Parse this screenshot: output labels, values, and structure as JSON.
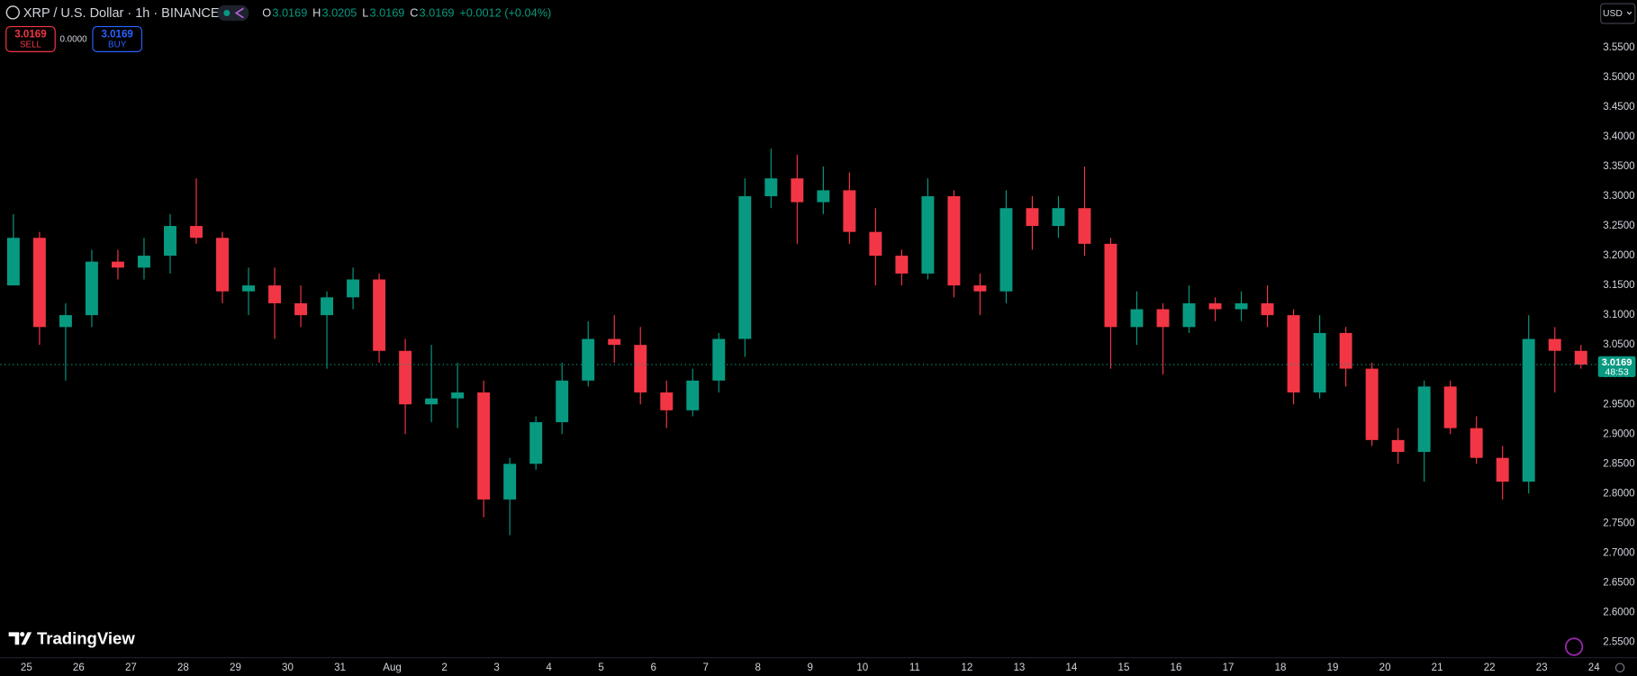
{
  "header": {
    "symbol": "XRP / U.S. Dollar · 1h · BINANCE",
    "ohlc": [
      {
        "key": "O",
        "value": "3.0169"
      },
      {
        "key": "H",
        "value": "3.0205"
      },
      {
        "key": "L",
        "value": "3.0169"
      },
      {
        "key": "C",
        "value": "3.0169"
      }
    ],
    "change": "+0.0012 (+0.04%)"
  },
  "trade": {
    "sell_price": "3.0169",
    "sell": "SELL",
    "spread": "0.0000",
    "buy_price": "3.0169",
    "buy": "BUY"
  },
  "currency": "USD",
  "brand": "TradingView",
  "countdown": "48:53",
  "chart_data": {
    "type": "candlestick",
    "up_color": "#089981",
    "down_color": "#f23645",
    "grid": false,
    "x_labels": [
      "25",
      "26",
      "27",
      "28",
      "29",
      "30",
      "31",
      "Aug",
      "2",
      "3",
      "4",
      "5",
      "6",
      "7",
      "8",
      "9",
      "10",
      "11",
      "12",
      "13",
      "14",
      "15",
      "16",
      "17",
      "18",
      "19",
      "20",
      "21",
      "22",
      "23",
      "24"
    ],
    "open": [
      3.15,
      3.23,
      3.08,
      3.1,
      3.19,
      3.18,
      3.2,
      3.25,
      3.23,
      3.14,
      3.15,
      3.12,
      3.1,
      3.13,
      3.16,
      3.04,
      2.95,
      2.96,
      2.97,
      2.79,
      2.85,
      2.92,
      2.99,
      3.06,
      3.05,
      2.97,
      2.94,
      2.99,
      3.06,
      3.3,
      3.33,
      3.29,
      3.31,
      3.24,
      3.2,
      3.17,
      3.3,
      3.15,
      3.14,
      3.28,
      3.25,
      3.28,
      3.22,
      3.08,
      3.11,
      3.08,
      3.12,
      3.11,
      3.12,
      3.1,
      2.97,
      3.07,
      3.01,
      2.89,
      2.87,
      2.98,
      2.91,
      2.86,
      2.82,
      3.06,
      3.04
    ],
    "high": [
      3.27,
      3.24,
      3.12,
      3.21,
      3.21,
      3.23,
      3.27,
      3.33,
      3.24,
      3.18,
      3.18,
      3.15,
      3.14,
      3.18,
      3.17,
      3.06,
      3.05,
      3.02,
      2.99,
      2.86,
      2.93,
      3.02,
      3.09,
      3.1,
      3.08,
      2.99,
      3.01,
      3.07,
      3.33,
      3.38,
      3.37,
      3.35,
      3.34,
      3.28,
      3.21,
      3.33,
      3.31,
      3.17,
      3.31,
      3.3,
      3.3,
      3.35,
      3.23,
      3.14,
      3.12,
      3.15,
      3.13,
      3.14,
      3.15,
      3.11,
      3.1,
      3.08,
      3.02,
      2.91,
      2.99,
      2.99,
      2.93,
      2.88,
      3.1,
      3.08,
      3.05
    ],
    "low": [
      3.15,
      3.05,
      2.99,
      3.08,
      3.16,
      3.16,
      3.17,
      3.22,
      3.12,
      3.1,
      3.06,
      3.08,
      3.01,
      3.11,
      3.02,
      2.9,
      2.92,
      2.91,
      2.76,
      2.73,
      2.84,
      2.9,
      2.98,
      3.02,
      2.95,
      2.91,
      2.93,
      2.97,
      3.03,
      3.28,
      3.22,
      3.27,
      3.22,
      3.15,
      3.15,
      3.16,
      3.13,
      3.1,
      3.12,
      3.21,
      3.23,
      3.2,
      3.01,
      3.05,
      3.0,
      3.07,
      3.09,
      3.09,
      3.08,
      2.95,
      2.96,
      2.98,
      2.88,
      2.85,
      2.82,
      2.9,
      2.85,
      2.79,
      2.8,
      2.97,
      3.01
    ],
    "close": [
      3.23,
      3.08,
      3.1,
      3.19,
      3.18,
      3.2,
      3.25,
      3.23,
      3.14,
      3.15,
      3.12,
      3.1,
      3.13,
      3.16,
      3.04,
      2.95,
      2.96,
      2.97,
      2.79,
      2.85,
      2.92,
      2.99,
      3.06,
      3.05,
      2.97,
      2.94,
      2.99,
      3.06,
      3.3,
      3.33,
      3.29,
      3.31,
      3.24,
      3.2,
      3.17,
      3.3,
      3.15,
      3.14,
      3.28,
      3.25,
      3.28,
      3.22,
      3.08,
      3.11,
      3.08,
      3.12,
      3.11,
      3.12,
      3.1,
      2.97,
      3.07,
      3.01,
      2.89,
      2.87,
      2.98,
      2.91,
      2.86,
      2.82,
      3.06,
      3.04,
      3.0169
    ],
    "last_price": 3.0169,
    "ylim": [
      2.52,
      3.63
    ],
    "yticks": [
      {
        "value": 2.55,
        "label": "2.5500"
      },
      {
        "value": 2.6,
        "label": "2.6000"
      },
      {
        "value": 2.65,
        "label": "2.6500"
      },
      {
        "value": 2.7,
        "label": "2.7000"
      },
      {
        "value": 2.75,
        "label": "2.7500"
      },
      {
        "value": 2.8,
        "label": "2.8000"
      },
      {
        "value": 2.85,
        "label": "2.8500"
      },
      {
        "value": 2.9,
        "label": "2.9000"
      },
      {
        "value": 2.95,
        "label": "2.9500"
      },
      {
        "value": 3.0,
        "label": "3.0000"
      },
      {
        "value": 3.05,
        "label": "3.0500"
      },
      {
        "value": 3.1,
        "label": "3.1000"
      },
      {
        "value": 3.15,
        "label": "3.1500"
      },
      {
        "value": 3.2,
        "label": "3.2000"
      },
      {
        "value": 3.25,
        "label": "3.2500"
      },
      {
        "value": 3.3,
        "label": "3.3000"
      },
      {
        "value": 3.35,
        "label": "3.3500"
      },
      {
        "value": 3.4,
        "label": "3.4000"
      },
      {
        "value": 3.45,
        "label": "3.4500"
      },
      {
        "value": 3.5,
        "label": "3.5000"
      },
      {
        "value": 3.55,
        "label": "3.5500"
      }
    ]
  }
}
